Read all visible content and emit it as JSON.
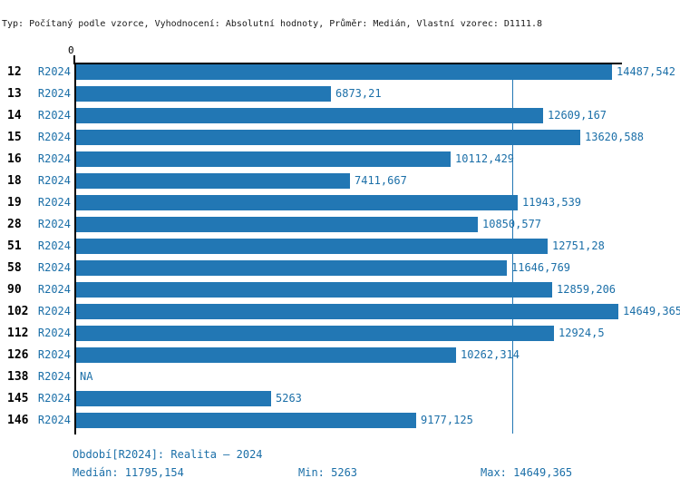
{
  "title": "Typ: Počítaný podle vzorce, Vyhodnocení: Absolutní hodnoty, Průměr: Medián, Vlastní vzorec: D1111.8",
  "colors": {
    "bar": "#2277b4",
    "blue_text": "#1b6fa8",
    "median_line": "#2277b4",
    "axis": "#000000",
    "title_text": "#1a1a1a"
  },
  "chart_data": {
    "type": "bar",
    "orientation": "horizontal",
    "title": "Typ: Počítaný podle vzorce, Vyhodnocení: Absolutní hodnoty, Průměr: Medián, Vlastní vzorec: D1111.8",
    "x_axis": {
      "tick_labels": [
        "0"
      ],
      "min": 0,
      "axis_max": 14750
    },
    "grid": false,
    "series_period_label": "R2024",
    "categories": [
      "12",
      "13",
      "14",
      "15",
      "16",
      "18",
      "19",
      "28",
      "51",
      "58",
      "90",
      "102",
      "112",
      "126",
      "138",
      "145",
      "146"
    ],
    "values": [
      14487.542,
      6873.21,
      12609.167,
      13620.588,
      10112.429,
      7411.667,
      11943.539,
      10850.577,
      12751.28,
      11646.769,
      12859.206,
      14649.365,
      12924.5,
      10262.314,
      null,
      5263,
      9177.125
    ],
    "value_labels": [
      "14487,542",
      "6873,21",
      "12609,167",
      "13620,588",
      "10112,429",
      "7411,667",
      "11943,539",
      "10850,577",
      "12751,28",
      "11646,769",
      "12859,206",
      "14649,365",
      "12924,5",
      "10262,314",
      "NA",
      "5263",
      "9177,125"
    ],
    "median": 11795.154,
    "min": 5263,
    "max": 14649.365
  },
  "footer": {
    "period": "Období[R2024]: Realita – 2024",
    "median": "Medián: 11795,154",
    "min": "Min: 5263",
    "max": "Max: 14649,365"
  }
}
